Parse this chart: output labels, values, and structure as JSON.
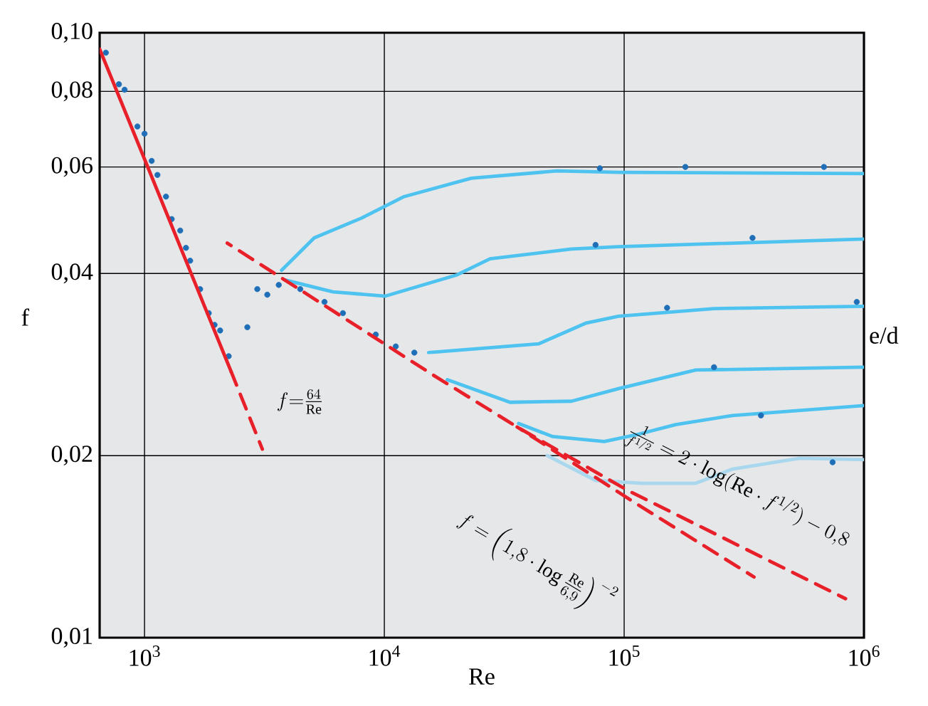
{
  "chart_data": {
    "type": "scatter",
    "xlabel": "Re",
    "ylabel": "f",
    "xlim": [
      650,
      1000000
    ],
    "ylim": [
      0.01,
      0.1
    ],
    "log": "xy",
    "grid": true,
    "xticks": [
      {
        "value": 1000,
        "label": "10$^{3}$"
      },
      {
        "value": 10000,
        "label": "10$^{4}$"
      },
      {
        "value": 100000,
        "label": "10$^{5}$"
      },
      {
        "value": 1000000,
        "label": "10$^{6}$"
      }
    ],
    "yticks": [
      {
        "value": 0.01,
        "label": "0,01"
      },
      {
        "value": 0.02,
        "label": "0,02"
      },
      {
        "value": 0.04,
        "label": "0,04"
      },
      {
        "value": 0.06,
        "label": "0,06"
      },
      {
        "value": 0.08,
        "label": "0,08"
      },
      {
        "value": 0.1,
        "label": "0,10"
      }
    ],
    "series": [
      {
        "type": "line",
        "color": "#4fc3f0",
        "line_style": "solid",
        "x": [
          3730,
          5100,
          8040,
          12100,
          23100,
          52500,
          94600,
          1000000
        ],
        "values": [
          0.0405,
          0.0458,
          0.0494,
          0.0536,
          0.0575,
          0.0591,
          0.0588,
          0.0585
        ]
      },
      {
        "type": "line",
        "color": "#4fc3f0",
        "line_style": "solid",
        "x": [
          3880,
          6110,
          10100,
          20100,
          27600,
          60300,
          94600,
          1000000
        ],
        "values": [
          0.039,
          0.0373,
          0.0367,
          0.0398,
          0.0423,
          0.0439,
          0.0443,
          0.0456
        ]
      },
      {
        "type": "line",
        "color": "#4fc3f0",
        "line_style": "solid",
        "x": [
          15300,
          44000,
          69000,
          94600,
          237000,
          1000000
        ],
        "values": [
          0.0296,
          0.0306,
          0.0331,
          0.034,
          0.035,
          0.0353
        ]
      },
      {
        "type": "line",
        "color": "#4fc3f0",
        "line_style": "solid",
        "x": [
          18300,
          33400,
          60300,
          94600,
          199000,
          1000000
        ],
        "values": [
          0.0267,
          0.0245,
          0.0246,
          0.0258,
          0.0277,
          0.028
        ]
      },
      {
        "type": "line",
        "color": "#4fc3f0",
        "line_style": "solid",
        "x": [
          36300,
          50400,
          82600,
          115000,
          164000,
          283000,
          1000000
        ],
        "values": [
          0.0226,
          0.0215,
          0.0211,
          0.0217,
          0.0225,
          0.0233,
          0.0242
        ]
      },
      {
        "type": "line",
        "color": "#a9d8ee",
        "line_style": "solid",
        "x": [
          47800,
          76000,
          119000,
          199000,
          283000,
          540000,
          1000000
        ],
        "values": [
          0.02,
          0.0182,
          0.018,
          0.018,
          0.019,
          0.0198,
          0.0197
        ]
      },
      {
        "color": "#1f6fb8",
        "marker": "circle",
        "x": [
          690,
          782,
          826,
          934,
          1000,
          1071,
          1132,
          1229,
          1298,
          1409,
          1489,
          1550,
          1706,
          1853,
          1959,
          2067,
          2244,
          2684,
          2953,
          3251,
          3629,
          4460,
          5630,
          6720,
          9210,
          11160,
          13340,
          79200,
          180000,
          681000,
          76000,
          343000,
          151000,
          933000,
          237000,
          372000,
          740000
        ],
        "values": [
          0.0927,
          0.0822,
          0.0805,
          0.07,
          0.0681,
          0.0614,
          0.0582,
          0.0536,
          0.0492,
          0.0471,
          0.0441,
          0.042,
          0.0377,
          0.0344,
          0.0329,
          0.0322,
          0.0292,
          0.0326,
          0.0377,
          0.0369,
          0.0383,
          0.0377,
          0.0359,
          0.0344,
          0.0317,
          0.0303,
          0.0296,
          0.0597,
          0.06,
          0.06,
          0.0446,
          0.0458,
          0.0351,
          0.0359,
          0.028,
          0.0233,
          0.0195
        ]
      },
      {
        "type": "line",
        "color": "#e8202a",
        "line_style": "solid",
        "x": [
          650,
          2300
        ],
        "values": [
          0.094,
          0.0275
        ]
      },
      {
        "type": "line",
        "color": "#e8202a",
        "line_style": "dashed",
        "x": [
          2300,
          3100
        ],
        "values": [
          0.0275,
          0.0205
        ]
      },
      {
        "type": "line",
        "color": "#e8202a",
        "line_style": "dashed",
        "x": [
          2213,
          15920,
          35800,
          104000,
          838000
        ],
        "values": [
          0.0449,
          0.0272,
          0.0223,
          0.0175,
          0.0116
        ]
      },
      {
        "type": "line",
        "color": "#e8202a",
        "line_style": "dashed",
        "x": [
          35800,
          108600,
          348000
        ],
        "values": [
          0.0223,
          0.0168,
          0.0126
        ]
      }
    ],
    "annotations": [
      "f{=}\\frac{64}{\\mathrm{Re}}",
      "\\frac{1}{f^{1/2}} = 2\\cdot\\log(\\mathrm{Re}\\cdot f^{1/2}) - 0{,}8",
      "f = \\left(1{,}8\\cdot\\log\\frac{\\mathrm{Re}}{6{,}9}\\right)^{-2}",
      "e/d"
    ]
  }
}
